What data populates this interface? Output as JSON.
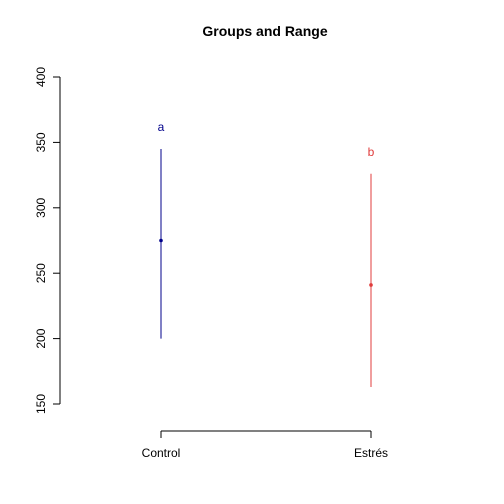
{
  "chart_data": {
    "type": "scatter",
    "title": "Groups and Range",
    "xlabel": "",
    "ylabel": "",
    "ylim": [
      150,
      400
    ],
    "yticks": [
      150,
      200,
      250,
      300,
      350,
      400
    ],
    "categories": [
      "Control",
      "Estrés"
    ],
    "series": [
      {
        "category": "Control",
        "center": 275,
        "low": 200,
        "high": 345,
        "group_letter": "a",
        "color": "#00008b"
      },
      {
        "category": "Estrés",
        "center": 241,
        "low": 163,
        "high": 326,
        "group_letter": "b",
        "color": "#e03c3c"
      }
    ],
    "grid": false,
    "legend": "none"
  }
}
